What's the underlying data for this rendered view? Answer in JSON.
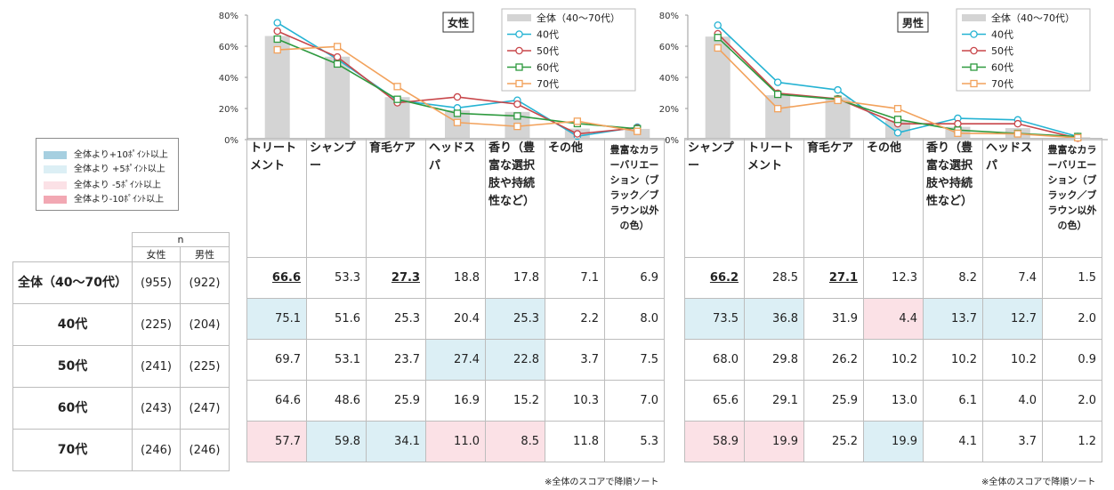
{
  "colors": {
    "overall_bar": "#d4d4d4",
    "s40": "#25b3d3",
    "s50": "#c8464a",
    "s60": "#2e9a3f",
    "s70": "#f2a25c",
    "plus10": "#a6cfe0",
    "plus5": "#dceff5",
    "minus5": "#fbe1e6",
    "minus10": "#f2a8b3"
  },
  "highlight_legend": [
    {
      "label": "全体より+10ﾎﾟｲﾝﾄ以上",
      "color": "#a6cfe0"
    },
    {
      "label": "全体より +5ﾎﾟｲﾝﾄ以上",
      "color": "#dceff5"
    },
    {
      "label": "全体より -5ﾎﾟｲﾝﾄ以上",
      "color": "#fbe1e6"
    },
    {
      "label": "全体より-10ﾎﾟｲﾝﾄ以上",
      "color": "#f2a8b3"
    }
  ],
  "rows_table": {
    "n_label": "n",
    "female_label": "女性",
    "male_label": "男性",
    "rows": [
      {
        "label": "全体（40～70代）",
        "female_n": "(955)",
        "male_n": "(922)"
      },
      {
        "label": "40代",
        "female_n": "(225)",
        "male_n": "(204)"
      },
      {
        "label": "50代",
        "female_n": "(241)",
        "male_n": "(225)"
      },
      {
        "label": "60代",
        "female_n": "(243)",
        "male_n": "(247)"
      },
      {
        "label": "70代",
        "female_n": "(246)",
        "male_n": "(246)"
      }
    ]
  },
  "note": "※全体のスコアで降順ソート",
  "chart_data": [
    {
      "type": "bar",
      "title": "女性",
      "ylim": [
        0,
        80
      ],
      "yticks": [
        "0%",
        "20%",
        "40%",
        "60%",
        "80%"
      ],
      "legend": [
        "全体（40～70代）",
        "40代",
        "50代",
        "60代",
        "70代"
      ],
      "categories": [
        "トリートメント",
        "シャンプー",
        "育毛ケア",
        "ヘッドスパ",
        "香り（豊富な選択肢や持続性など）",
        "その他",
        "豊富なカラーバリエーション（ブラック／ブラウン以外の色）"
      ],
      "series": [
        {
          "name": "全体（40～70代）",
          "values": [
            66.6,
            53.3,
            27.3,
            18.8,
            17.8,
            7.1,
            6.9
          ]
        },
        {
          "name": "40代",
          "values": [
            75.1,
            51.6,
            25.3,
            20.4,
            25.3,
            2.2,
            8.0
          ]
        },
        {
          "name": "50代",
          "values": [
            69.7,
            53.1,
            23.7,
            27.4,
            22.8,
            3.7,
            7.5
          ]
        },
        {
          "name": "60代",
          "values": [
            64.6,
            48.6,
            25.9,
            16.9,
            15.2,
            10.3,
            7.0
          ]
        },
        {
          "name": "70代",
          "values": [
            57.7,
            59.8,
            34.1,
            11.0,
            8.5,
            11.8,
            5.3
          ]
        }
      ],
      "bold_cells": [
        0,
        2
      ],
      "highlights": [
        [
          null,
          null,
          null,
          null,
          null,
          null,
          null
        ],
        [
          "plus5",
          null,
          null,
          null,
          "plus5",
          null,
          null
        ],
        [
          null,
          null,
          null,
          "plus5",
          "plus5",
          null,
          null
        ],
        [
          null,
          null,
          null,
          null,
          null,
          null,
          null
        ],
        [
          "minus5",
          "plus5",
          "plus5",
          "minus5",
          "minus5",
          null,
          null
        ]
      ]
    },
    {
      "type": "bar",
      "title": "男性",
      "ylim": [
        0,
        80
      ],
      "yticks": [
        "0%",
        "20%",
        "40%",
        "60%",
        "80%"
      ],
      "legend": [
        "全体（40～70代）",
        "40代",
        "50代",
        "60代",
        "70代"
      ],
      "categories": [
        "シャンプー",
        "トリートメント",
        "育毛ケア",
        "その他",
        "香り（豊富な選択肢や持続性など）",
        "ヘッドスパ",
        "豊富なカラーバリエーション（ブラック／ブラウン以外の色）"
      ],
      "series": [
        {
          "name": "全体（40～70代）",
          "values": [
            66.2,
            28.5,
            27.1,
            12.3,
            8.2,
            7.4,
            1.5
          ]
        },
        {
          "name": "40代",
          "values": [
            73.5,
            36.8,
            31.9,
            4.4,
            13.7,
            12.7,
            2.0
          ]
        },
        {
          "name": "50代",
          "values": [
            68.0,
            29.8,
            26.2,
            10.2,
            10.2,
            10.2,
            0.9
          ]
        },
        {
          "name": "60代",
          "values": [
            65.6,
            29.1,
            25.9,
            13.0,
            6.1,
            4.0,
            2.0
          ]
        },
        {
          "name": "70代",
          "values": [
            58.9,
            19.9,
            25.2,
            19.9,
            4.1,
            3.7,
            1.2
          ]
        }
      ],
      "bold_cells": [
        0,
        2
      ],
      "highlights": [
        [
          null,
          null,
          null,
          null,
          null,
          null,
          null
        ],
        [
          "plus5",
          "plus5",
          null,
          "minus5",
          "plus5",
          "plus5",
          null
        ],
        [
          null,
          null,
          null,
          null,
          null,
          null,
          null
        ],
        [
          null,
          null,
          null,
          null,
          null,
          null,
          null
        ],
        [
          "minus5",
          "minus5",
          null,
          "plus5",
          null,
          null,
          null
        ]
      ]
    }
  ]
}
